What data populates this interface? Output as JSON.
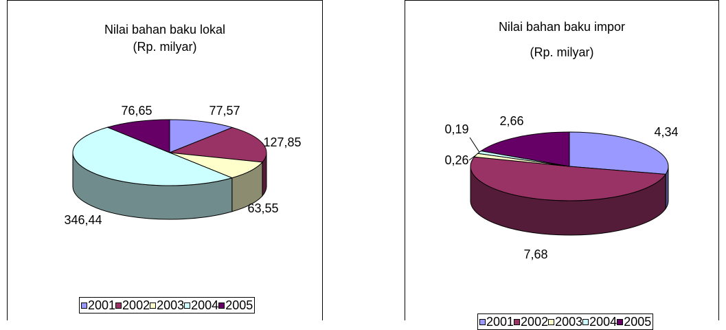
{
  "chart_data": [
    {
      "type": "pie",
      "title": "Nilai bahan baku lokal",
      "subtitle": "(Rp. milyar)",
      "categories": [
        "2001",
        "2002",
        "2003",
        "2004",
        "2005"
      ],
      "values": [
        77.57,
        127.85,
        63.55,
        346.44,
        76.65
      ],
      "data_labels": [
        "77,57",
        "127,85",
        "63,55",
        "346,44",
        "76,65"
      ],
      "colors": [
        "#9999ff",
        "#993366",
        "#ffffcc",
        "#ccffff",
        "#660066"
      ],
      "legend_position": "bottom",
      "style": "3d"
    },
    {
      "type": "pie",
      "title": "Nilai bahan baku impor",
      "subtitle": "(Rp. milyar)",
      "categories": [
        "2001",
        "2002",
        "2003",
        "2004",
        "2005"
      ],
      "values": [
        4.34,
        7.68,
        0.26,
        0.19,
        2.66
      ],
      "data_labels": [
        "4,34",
        "7,68",
        "0,26",
        "0,19",
        "2,66"
      ],
      "colors": [
        "#9999ff",
        "#993366",
        "#ffffcc",
        "#ccffff",
        "#660066"
      ],
      "legend_position": "bottom",
      "style": "3d"
    }
  ]
}
